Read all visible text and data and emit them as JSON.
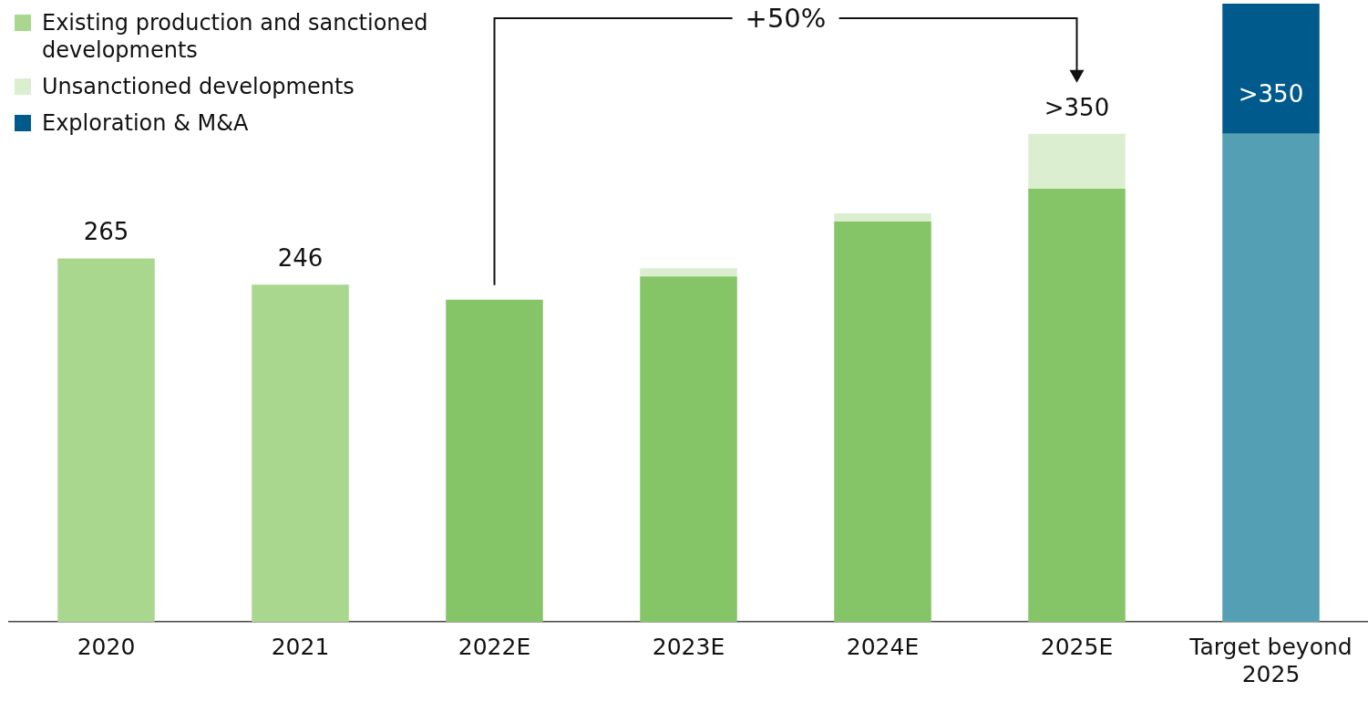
{
  "chart_data": {
    "type": "bar",
    "stacked": true,
    "legend": "top left",
    "data_labels": false,
    "categories": [
      "2020",
      "2021",
      "2022E",
      "2023E",
      "2024E",
      "2025E",
      "Target beyond 2025"
    ],
    "series": [
      {
        "name": "Existing production and sanctioned developments",
        "color": "#a9d78e",
        "colors": [
          "#a9d78e",
          "#a9d78e",
          "#85c567",
          "#85c567",
          "#85c567",
          "#85c567",
          "#559fb5"
        ],
        "values": [
          265,
          246,
          235,
          252,
          292,
          316,
          356
        ],
        "value_labels": [
          "265",
          "246",
          null,
          null,
          null,
          null,
          null
        ]
      },
      {
        "name": "Unsanctioned developments",
        "color": "#dbeed0",
        "values": [
          null,
          null,
          null,
          6,
          6,
          40,
          null
        ]
      },
      {
        "name": "Exploration & M&A",
        "color": "#005a8c",
        "values": [
          null,
          null,
          null,
          null,
          null,
          null,
          95
        ],
        "value_labels": [
          null,
          null,
          null,
          null,
          null,
          null,
          ">350"
        ]
      }
    ],
    "totals": [
      null,
      null,
      null,
      null,
      null,
      ">350",
      null
    ],
    "annotations": [
      "+50%"
    ]
  }
}
